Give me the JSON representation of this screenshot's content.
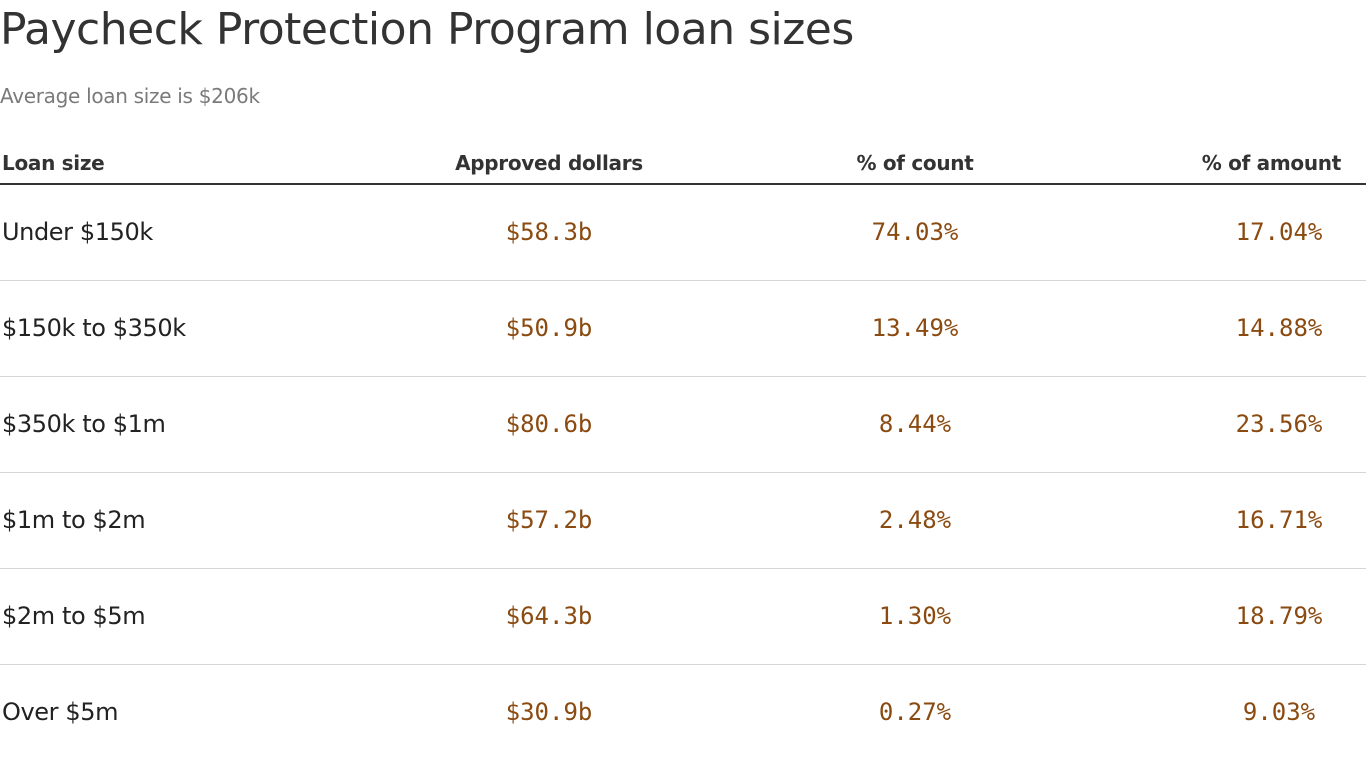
{
  "title": "Paycheck Protection Program loan sizes",
  "subtitle": "Average loan size is $206k",
  "colors": {
    "value_text": "#8a4a10",
    "label_text": "#222222",
    "rule": "#333333",
    "row_divider": "#d6d6d6"
  },
  "chart_data": {
    "type": "table",
    "columns": [
      "Loan size",
      "Approved dollars",
      "% of count",
      "% of amount"
    ],
    "rows": [
      {
        "loan_size": "Under $150k",
        "approved_dollars": "$58.3b",
        "pct_count": "74.03%",
        "pct_amount": "17.04%"
      },
      {
        "loan_size": "$150k to $350k",
        "approved_dollars": "$50.9b",
        "pct_count": "13.49%",
        "pct_amount": "14.88%"
      },
      {
        "loan_size": "$350k to $1m",
        "approved_dollars": "$80.6b",
        "pct_count": "8.44%",
        "pct_amount": "23.56%"
      },
      {
        "loan_size": "$1m to $2m",
        "approved_dollars": "$57.2b",
        "pct_count": "2.48%",
        "pct_amount": "16.71%"
      },
      {
        "loan_size": "$2m to $5m",
        "approved_dollars": "$64.3b",
        "pct_count": "1.30%",
        "pct_amount": "18.79%"
      },
      {
        "loan_size": "Over $5m",
        "approved_dollars": "$30.9b",
        "pct_count": "0.27%",
        "pct_amount": "9.03%"
      }
    ]
  }
}
